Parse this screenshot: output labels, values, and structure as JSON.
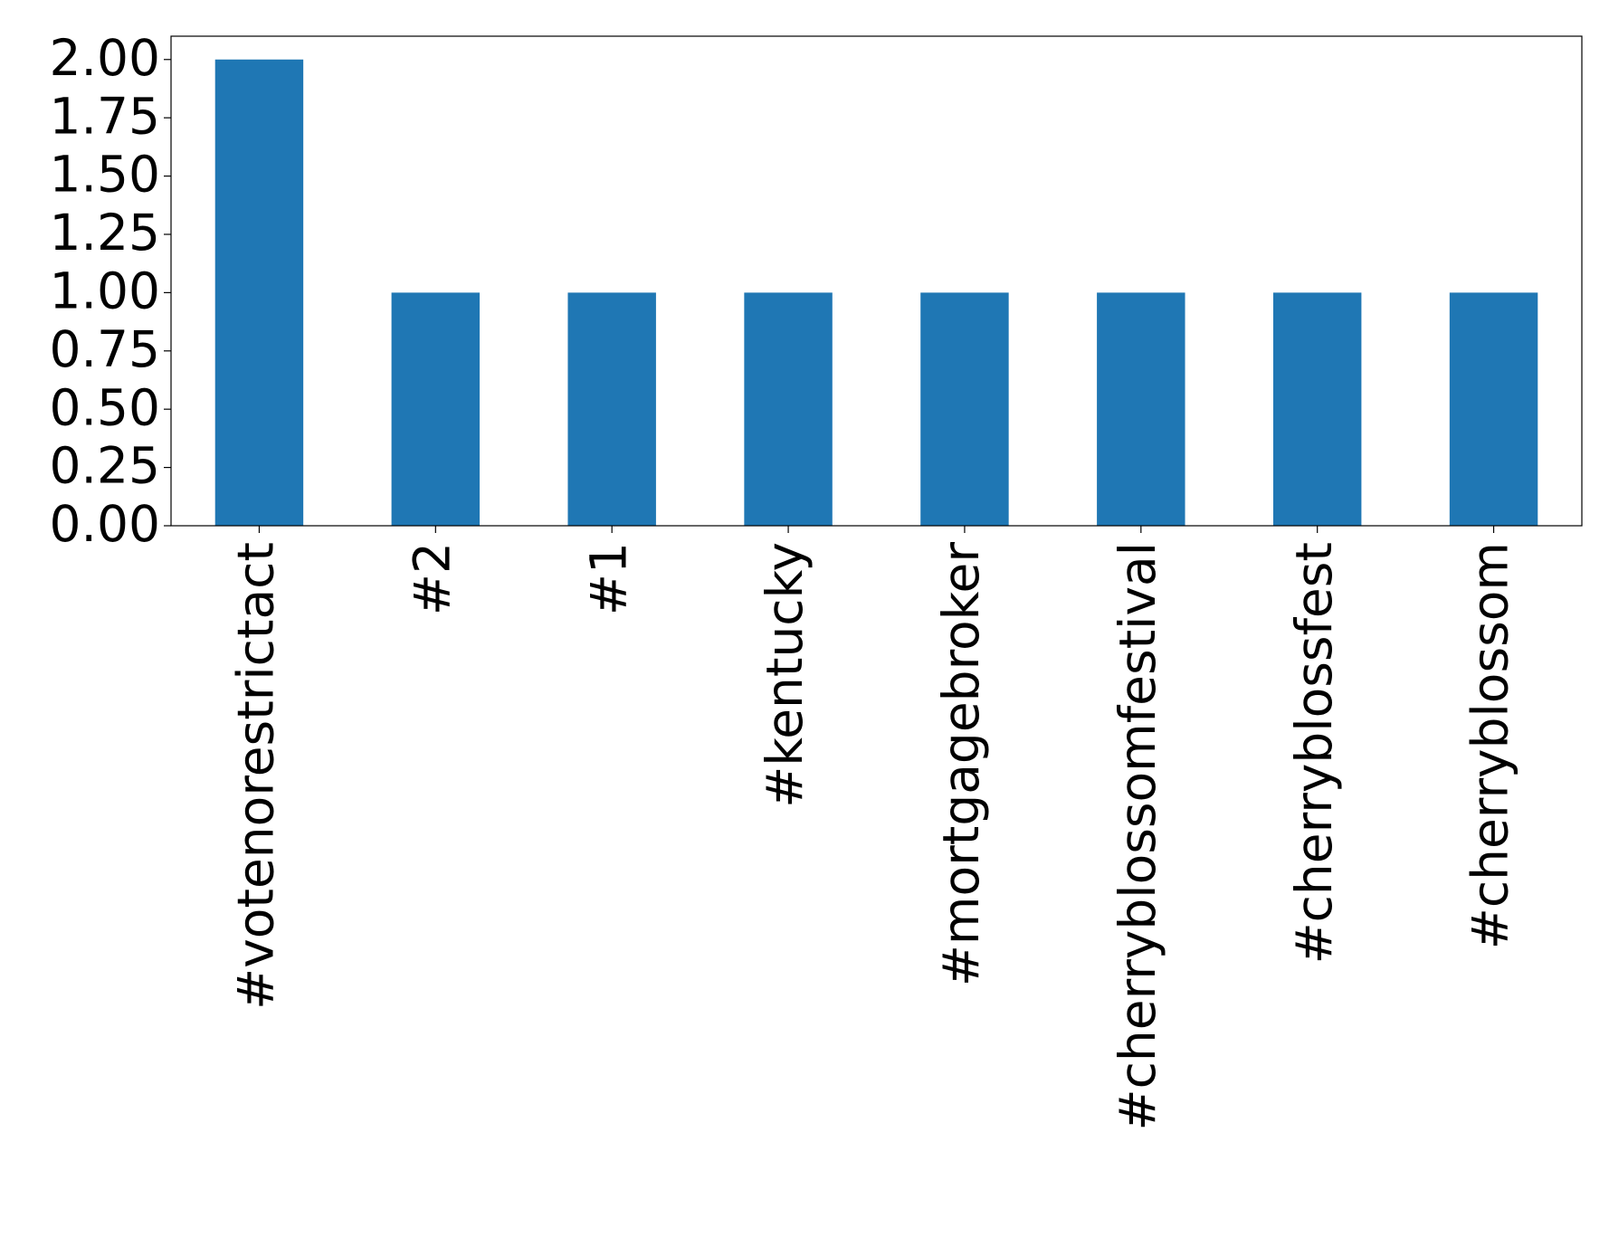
{
  "chart_data": {
    "type": "bar",
    "categories": [
      "#votenorestrictact",
      "#2",
      "#1",
      "#kentucky",
      "#mortgagebroker",
      "#cherryblossomfestival",
      "#cherryblossfest",
      "#cherryblossom"
    ],
    "values": [
      2,
      1,
      1,
      1,
      1,
      1,
      1,
      1
    ],
    "color": "#1f77b4",
    "ylim": [
      0,
      2.1
    ],
    "yticks": [
      {
        "value": 0,
        "label": "0.00"
      },
      {
        "value": 0.25,
        "label": "0.25"
      },
      {
        "value": 0.5,
        "label": "0.50"
      },
      {
        "value": 0.75,
        "label": "0.75"
      },
      {
        "value": 1,
        "label": "1.00"
      },
      {
        "value": 1.25,
        "label": "1.25"
      },
      {
        "value": 1.5,
        "label": "1.50"
      },
      {
        "value": 1.75,
        "label": "1.75"
      },
      {
        "value": 2,
        "label": "2.00"
      }
    ],
    "grid": false
  }
}
